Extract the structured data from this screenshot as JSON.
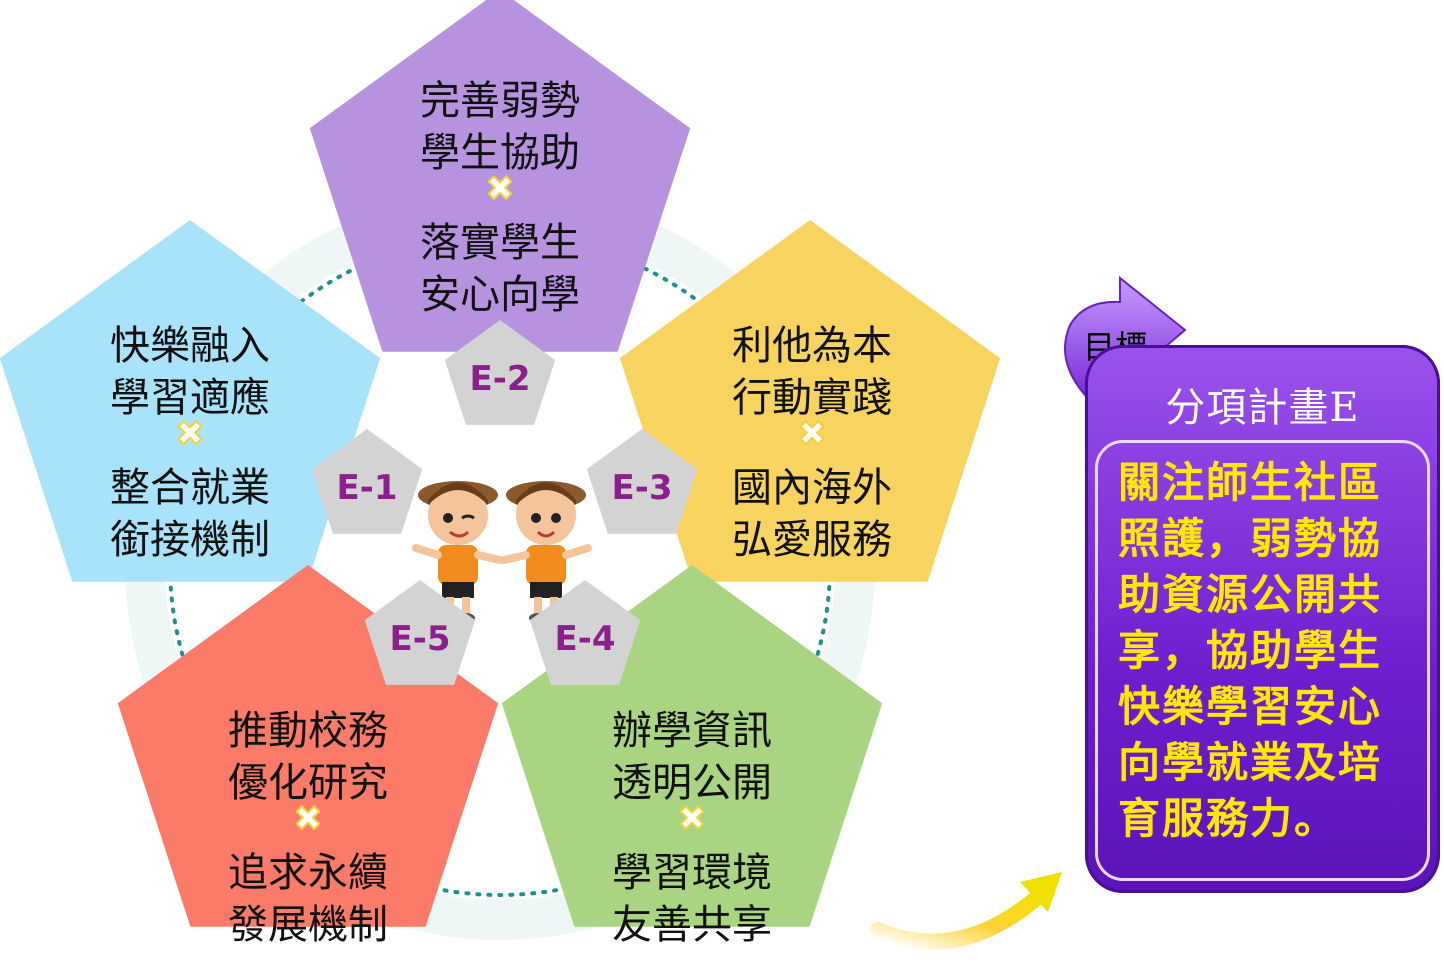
{
  "pentagons": [
    {
      "id": "E-1",
      "code": "E-1",
      "lines": [
        "快樂融入",
        "學習適應",
        "整合就業",
        "銜接機制"
      ],
      "color": "#a8e3fb"
    },
    {
      "id": "E-2",
      "code": "E-2",
      "lines": [
        "完善弱勢",
        "學生協助",
        "落實學生",
        "安心向學"
      ],
      "color": "#b793df"
    },
    {
      "id": "E-3",
      "code": "E-3",
      "lines": [
        "利他為本",
        "行動實踐",
        "國內海外",
        "弘愛服務"
      ],
      "color": "#f7d460"
    },
    {
      "id": "E-4",
      "code": "E-4",
      "lines": [
        "辦學資訊",
        "透明公開",
        "學習環境",
        "友善共享"
      ],
      "color": "#a9d582"
    },
    {
      "id": "E-5",
      "code": "E-5",
      "lines": [
        "推動校務",
        "優化研究",
        "追求永續",
        "發展機制"
      ],
      "color": "#fb7b68"
    }
  ],
  "cross_symbol": "✖",
  "goal": {
    "tab_label": "目標",
    "title": "分項計畫E",
    "text": "關注師生社區照護，弱勢協助資源公開共享，協助學生快樂學習安心向學就業及培育服務力。"
  },
  "colors": {
    "code_text": "#8b1f8b",
    "small_pentagon": "#d3d3d3",
    "goal_text": "#ffe800"
  }
}
